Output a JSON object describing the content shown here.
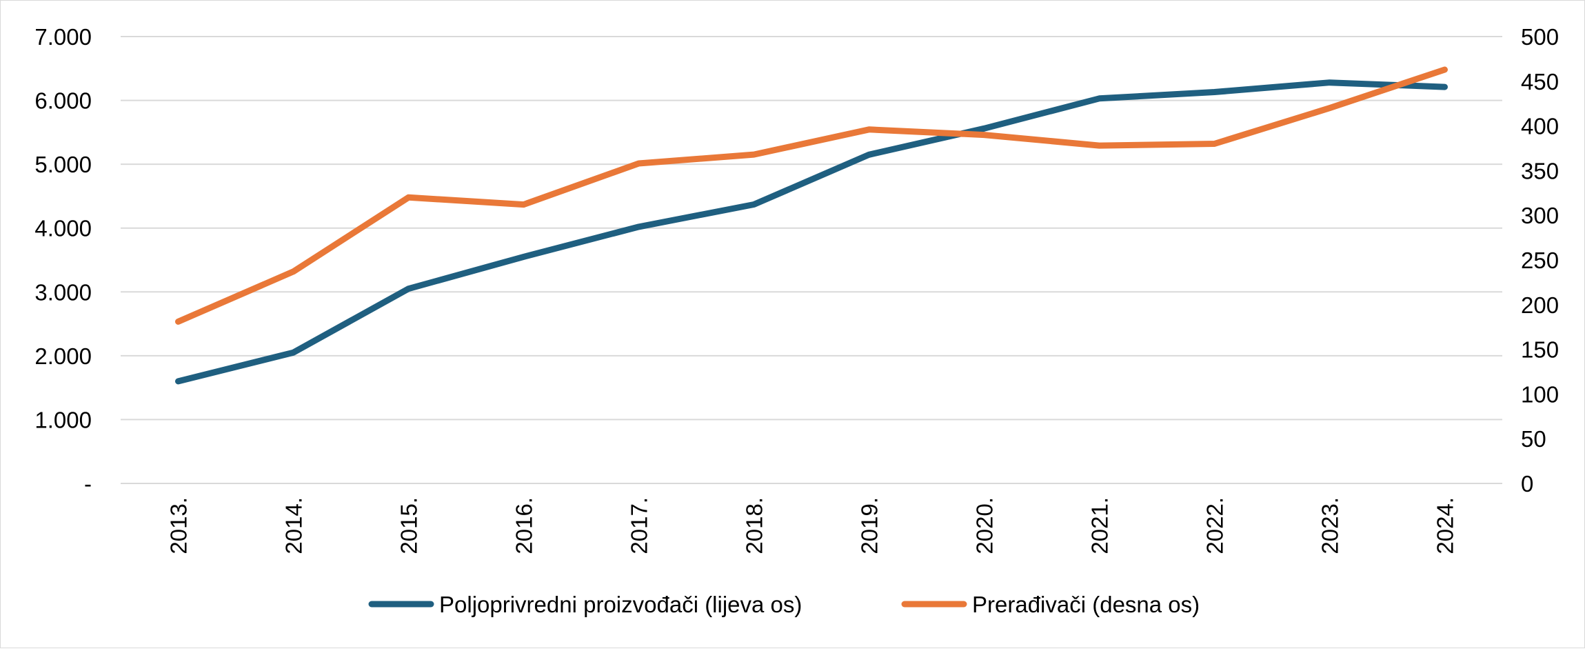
{
  "chart_data": {
    "type": "line",
    "categories": [
      "2013.",
      "2014.",
      "2015.",
      "2016.",
      "2017.",
      "2018.",
      "2019.",
      "2020.",
      "2021.",
      "2022.",
      "2023.",
      "2024."
    ],
    "series": [
      {
        "name": "Poljoprivredni proizvođači (lijeva os)",
        "axis": "left",
        "color": "#1f5f80",
        "values": [
          1600,
          2050,
          3050,
          3550,
          4020,
          4370,
          5150,
          5560,
          6030,
          6130,
          6280,
          6210
        ]
      },
      {
        "name": "Prerađivači (desna os)",
        "axis": "right",
        "color": "#e97838",
        "values": [
          181,
          237,
          320,
          312,
          358,
          368,
          396,
          390,
          378,
          380,
          420,
          463
        ]
      }
    ],
    "y_left": {
      "ylim": [
        0,
        7000
      ],
      "ticks": [
        0,
        1000,
        2000,
        3000,
        4000,
        5000,
        6000,
        7000
      ],
      "tick_labels": [
        "-",
        "1.000",
        "2.000",
        "3.000",
        "4.000",
        "5.000",
        "6.000",
        "7.000"
      ]
    },
    "y_right": {
      "ylim": [
        0,
        500
      ],
      "ticks": [
        0,
        50,
        100,
        150,
        200,
        250,
        300,
        350,
        400,
        450,
        500
      ],
      "tick_labels": [
        "0",
        "50",
        "100",
        "150",
        "200",
        "250",
        "300",
        "350",
        "400",
        "450",
        "500"
      ]
    },
    "grid": true,
    "legend_position": "bottom"
  }
}
